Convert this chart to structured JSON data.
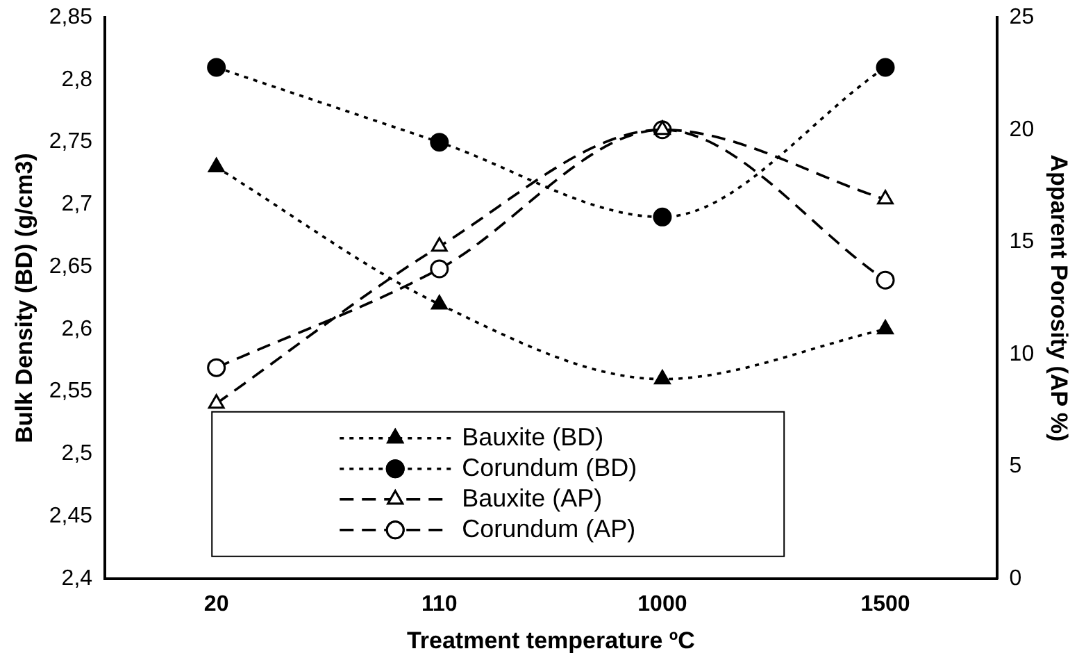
{
  "chart_data": {
    "type": "line",
    "xlabel": "Treatment temperature ºC",
    "ylabel": "Bulk Density (BD) (g/cm3)",
    "y2label": "Apparent Porosity (AP %)",
    "categories": [
      "20",
      "110",
      "1000",
      "1500"
    ],
    "ylim": [
      2.4,
      2.85
    ],
    "yticks": [
      {
        "value": 2.4,
        "label": "2,4"
      },
      {
        "value": 2.45,
        "label": "2,45"
      },
      {
        "value": 2.5,
        "label": "2,5"
      },
      {
        "value": 2.55,
        "label": "2,55"
      },
      {
        "value": 2.6,
        "label": "2,6"
      },
      {
        "value": 2.65,
        "label": "2,65"
      },
      {
        "value": 2.7,
        "label": "2,7"
      },
      {
        "value": 2.75,
        "label": "2,75"
      },
      {
        "value": 2.8,
        "label": "2,8"
      },
      {
        "value": 2.85,
        "label": "2,85"
      }
    ],
    "y2lim": [
      0,
      25
    ],
    "y2ticks": [
      0,
      5,
      10,
      15,
      20,
      25
    ],
    "grid": false,
    "legend": "bottom",
    "series": [
      {
        "name": "Bauxite (BD)",
        "color": "#000000",
        "values": [
          2.73,
          2.62,
          2.56,
          2.6
        ],
        "marker": "triangle",
        "line_style": "dotted"
      },
      {
        "name": "Corundum (BD)",
        "color": "#000000",
        "values": [
          2.81,
          2.75,
          2.69,
          2.81
        ],
        "marker": "circle",
        "line_style": "dotted"
      },
      {
        "name": "Bauxite (AP)",
        "color": "#000000",
        "values": [
          7.8,
          14.8,
          20,
          16.9
        ],
        "marker": "triangle",
        "line_style": "dashed",
        "axis": "y2"
      },
      {
        "name": "Corundum (AP)",
        "color": "#000000",
        "values": [
          9.4,
          13.8,
          20,
          13.3
        ],
        "marker": "circle",
        "line_style": "dashed",
        "axis": "y2"
      }
    ]
  }
}
